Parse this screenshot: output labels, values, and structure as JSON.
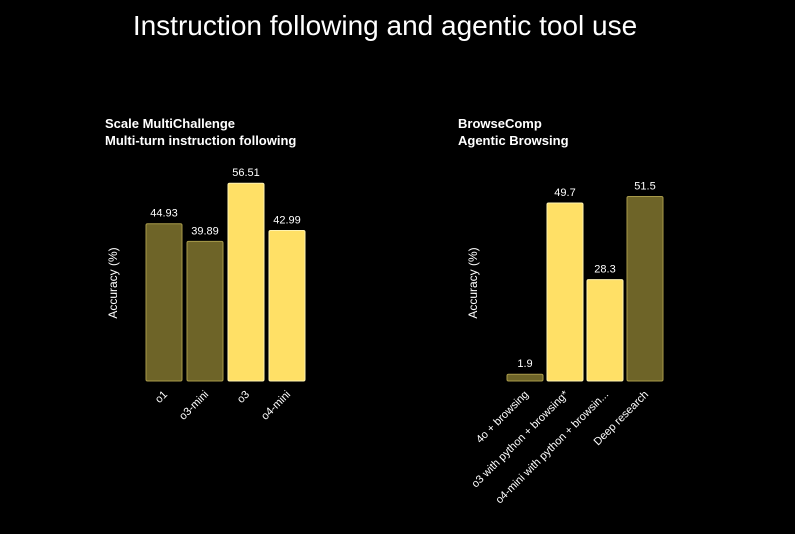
{
  "page": {
    "title": "Instruction following and agentic tool use"
  },
  "colors": {
    "highlight": "#ffe066",
    "muted": "#6e6428",
    "border_highlight": "#fff3b0",
    "border_muted": "#a89a4a"
  },
  "chart_data": [
    {
      "type": "bar",
      "title": "Scale MultiChallenge",
      "subtitle": "Multi-turn instruction following",
      "ylabel": "Accuracy (%)",
      "xlabel": "",
      "categories": [
        "o1",
        "o3-mini",
        "o3",
        "o4-mini"
      ],
      "values": [
        44.93,
        39.89,
        56.51,
        42.99
      ],
      "value_labels": [
        "44.93",
        "39.89",
        "56.51",
        "42.99"
      ],
      "highlight": [
        false,
        false,
        true,
        true
      ],
      "ylim": [
        0,
        60
      ]
    },
    {
      "type": "bar",
      "title": "BrowseComp",
      "subtitle": "Agentic Browsing",
      "ylabel": "Accuracy (%)",
      "xlabel": "",
      "categories": [
        "4o + browsing",
        "o3 with python + browsing*",
        "o4-mini with python + browsin...",
        "Deep research"
      ],
      "values": [
        1.9,
        49.7,
        28.3,
        51.5
      ],
      "value_labels": [
        "1.9",
        "49.7",
        "28.3",
        "51.5"
      ],
      "highlight": [
        false,
        true,
        true,
        false
      ],
      "ylim": [
        0,
        55
      ]
    }
  ]
}
